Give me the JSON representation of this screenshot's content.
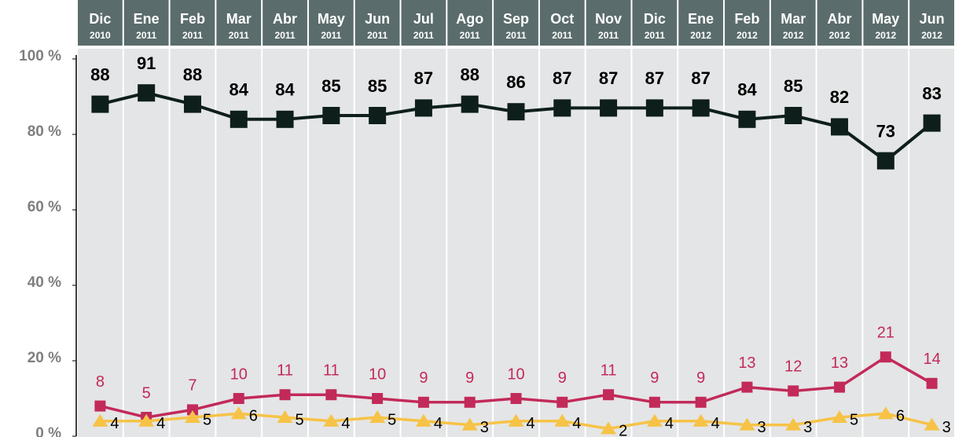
{
  "chart_data": {
    "type": "line",
    "categories": [
      [
        "Dic",
        "2010"
      ],
      [
        "Ene",
        "2011"
      ],
      [
        "Feb",
        "2011"
      ],
      [
        "Mar",
        "2011"
      ],
      [
        "Abr",
        "2011"
      ],
      [
        "May",
        "2011"
      ],
      [
        "Jun",
        "2011"
      ],
      [
        "Jul",
        "2011"
      ],
      [
        "Ago",
        "2011"
      ],
      [
        "Sep",
        "2011"
      ],
      [
        "Oct",
        "2011"
      ],
      [
        "Nov",
        "2011"
      ],
      [
        "Dic",
        "2011"
      ],
      [
        "Ene",
        "2012"
      ],
      [
        "Feb",
        "2012"
      ],
      [
        "Mar",
        "2012"
      ],
      [
        "Abr",
        "2012"
      ],
      [
        "May",
        "2012"
      ],
      [
        "Jun",
        "2012"
      ]
    ],
    "series": [
      {
        "color": "#0e1f1b",
        "marker": "square",
        "values": [
          88,
          91,
          88,
          84,
          84,
          85,
          85,
          87,
          88,
          86,
          87,
          87,
          87,
          87,
          84,
          85,
          82,
          73,
          83
        ]
      },
      {
        "color": "#c22a5a",
        "marker": "square",
        "values": [
          8,
          5,
          7,
          10,
          11,
          11,
          10,
          9,
          9,
          10,
          9,
          11,
          9,
          9,
          13,
          12,
          13,
          21,
          14
        ]
      },
      {
        "color": "#f6c347",
        "marker": "triangle",
        "values": [
          4,
          4,
          5,
          6,
          5,
          4,
          5,
          4,
          3,
          4,
          4,
          2,
          4,
          4,
          3,
          3,
          5,
          6,
          3
        ]
      }
    ],
    "ylim": [
      0,
      100
    ],
    "yticks": [
      {
        "value": 0,
        "label": "0 %"
      },
      {
        "value": 20,
        "label": "20 %"
      },
      {
        "value": 40,
        "label": "40 %"
      },
      {
        "value": 60,
        "label": "60 %"
      },
      {
        "value": 80,
        "label": "80 %"
      },
      {
        "value": 100,
        "label": "100 %"
      }
    ],
    "grid": false
  }
}
